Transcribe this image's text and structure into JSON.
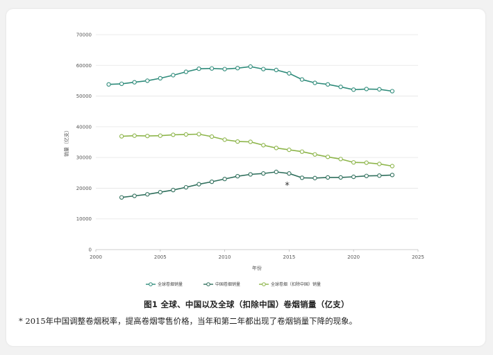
{
  "chart_data": {
    "type": "line",
    "title": "图1 全球、中国以及全球（扣除中国）卷烟销量（亿支）",
    "xlabel": "年份",
    "ylabel": "销量（亿支）",
    "xlim": [
      2000,
      2025
    ],
    "ylim": [
      0,
      70000
    ],
    "xticks": [
      "2000",
      "2005",
      "2010",
      "2015",
      "2020",
      "2025"
    ],
    "yticks": [
      "0",
      "10000",
      "20000",
      "30000",
      "40000",
      "50000",
      "60000",
      "70000"
    ],
    "grid": "horizontal",
    "legend_position": "bottom",
    "series": [
      {
        "name": "全球卷烟销量",
        "color": "#2e8b7a",
        "x": [
          2001,
          2002,
          2003,
          2004,
          2005,
          2006,
          2007,
          2008,
          2009,
          2010,
          2011,
          2012,
          2013,
          2014,
          2015,
          2016,
          2017,
          2018,
          2019,
          2020,
          2021,
          2022,
          2023
        ],
        "values": [
          53800,
          54000,
          54500,
          55000,
          55800,
          56800,
          57900,
          58900,
          59000,
          58800,
          59100,
          59600,
          58800,
          58500,
          57400,
          55400,
          54300,
          53800,
          53000,
          52100,
          52300,
          52200,
          51600
        ]
      },
      {
        "name": "中国卷烟销量",
        "color": "#2f6f5c",
        "x": [
          2002,
          2003,
          2004,
          2005,
          2006,
          2007,
          2008,
          2009,
          2010,
          2011,
          2012,
          2013,
          2014,
          2015,
          2016,
          2017,
          2018,
          2019,
          2020,
          2021,
          2022,
          2023
        ],
        "values": [
          17000,
          17500,
          18000,
          18700,
          19400,
          20300,
          21300,
          22100,
          23000,
          23900,
          24500,
          24800,
          25300,
          24800,
          23400,
          23300,
          23500,
          23500,
          23700,
          24000,
          24100,
          24300
        ]
      },
      {
        "name": "全球卷烟（扣除中国）销量",
        "color": "#8db54a",
        "x": [
          2002,
          2003,
          2004,
          2005,
          2006,
          2007,
          2008,
          2009,
          2010,
          2011,
          2012,
          2013,
          2014,
          2015,
          2016,
          2017,
          2018,
          2019,
          2020,
          2021,
          2022,
          2023
        ],
        "values": [
          36900,
          37100,
          37000,
          37100,
          37400,
          37500,
          37600,
          36800,
          35800,
          35200,
          35100,
          34000,
          33100,
          32500,
          31900,
          31000,
          30200,
          29500,
          28400,
          28300,
          27900,
          27200
        ]
      }
    ],
    "annotation": {
      "text": "*",
      "x": 2015,
      "y": 21000
    }
  },
  "note": "* 2015年中国调整卷烟税率，提高卷烟零售价格，当年和第二年都出现了卷烟销量下降的现象。"
}
